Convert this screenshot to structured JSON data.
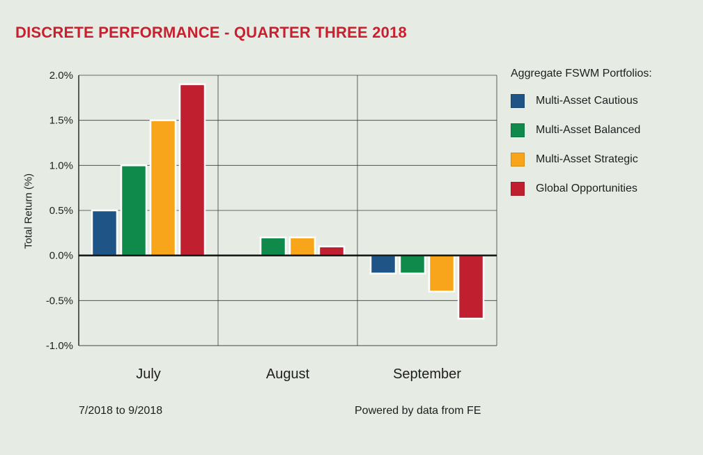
{
  "title": "DISCRETE PERFORMANCE - QUARTER THREE 2018",
  "footer": {
    "period": "7/2018 to 9/2018",
    "source": "Powered by data from FE"
  },
  "legend": {
    "title": "Aggregate FSWM Portfolios:"
  },
  "chart_data": {
    "type": "bar",
    "title": "DISCRETE PERFORMANCE - QUARTER THREE 2018",
    "xlabel": "",
    "ylabel": "Total Return (%)",
    "categories": [
      "July",
      "August",
      "September"
    ],
    "ylim": [
      -1.0,
      2.0
    ],
    "yticks": [
      2.0,
      1.5,
      1.0,
      0.5,
      0.0,
      -0.5,
      -1.0
    ],
    "ytick_labels": [
      "2.0%",
      "1.5%",
      "1.0%",
      "0.5%",
      "0.0%",
      "-0.5%",
      "-1.0%"
    ],
    "grid": true,
    "legend_position": "right",
    "series": [
      {
        "name": "Multi-Asset Cautious",
        "color": "#1f5487",
        "values": [
          0.5,
          0.0,
          -0.2
        ]
      },
      {
        "name": "Multi-Asset Balanced",
        "color": "#0f8a4a",
        "values": [
          1.0,
          0.2,
          -0.2
        ]
      },
      {
        "name": "Multi-Asset Strategic",
        "color": "#f9a51b",
        "values": [
          1.5,
          0.2,
          -0.4
        ]
      },
      {
        "name": "Global Opportunities",
        "color": "#c01f30",
        "values": [
          1.9,
          0.1,
          -0.7
        ]
      }
    ]
  }
}
